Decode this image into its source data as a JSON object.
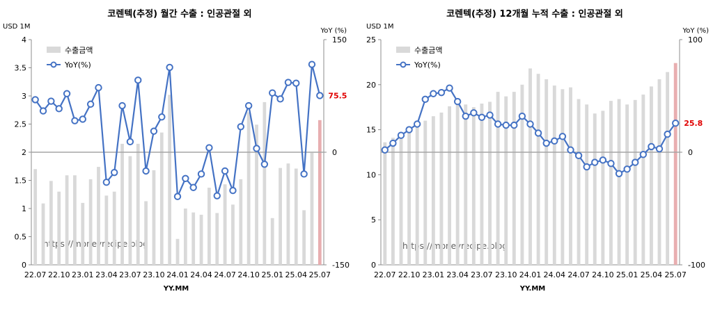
{
  "watermark": "https://moneyrecipe.blog",
  "colors": {
    "bar": "#d9d9d9",
    "bar_last": "#e8aeb0",
    "line": "#4472c4",
    "marker_fill": "#ffffff",
    "highlight_text": "#e00000",
    "zero_line": "#a6a6a6"
  },
  "chart_data": [
    {
      "type": "bar+line",
      "title": "코렌텍(추정) 월간 수출 : 인공관절 외",
      "y_left_unit": "USD 1M",
      "y_right_unit": "YoY (%)",
      "xlabel": "YY.MM",
      "ylim_left": [
        0,
        4
      ],
      "yticks_left": [
        "0",
        "0.5",
        "1",
        "1.5",
        "2",
        "2.5",
        "3",
        "3.5",
        "4"
      ],
      "ylim_right": [
        -150,
        150
      ],
      "yticks_right": [
        "-150",
        "0",
        "150"
      ],
      "x_tick_labels": [
        "22.07",
        "22.10",
        "23.01",
        "23.04",
        "23.07",
        "23.10",
        "24.01",
        "24.04",
        "24.07",
        "24.10",
        "25.01",
        "25.04",
        "25.07"
      ],
      "x": [
        "22.07",
        "22.08",
        "22.09",
        "22.10",
        "22.11",
        "22.12",
        "23.01",
        "23.02",
        "23.03",
        "23.04",
        "23.05",
        "23.06",
        "23.07",
        "23.08",
        "23.09",
        "23.10",
        "23.11",
        "23.12",
        "24.01",
        "24.02",
        "24.03",
        "24.04",
        "24.05",
        "24.06",
        "24.07",
        "24.08",
        "24.09",
        "24.10",
        "24.11",
        "24.12",
        "25.01",
        "25.02",
        "25.03",
        "25.04",
        "25.05",
        "25.06",
        "25.07"
      ],
      "series": [
        {
          "name": "수출금액",
          "kind": "bar",
          "axis": "left",
          "values": [
            1.7,
            1.09,
            1.49,
            1.3,
            1.59,
            1.59,
            1.1,
            1.52,
            1.74,
            1.23,
            1.3,
            2.15,
            1.93,
            2.15,
            1.13,
            1.68,
            2.35,
            3.02,
            0.46,
            1.0,
            0.93,
            0.89,
            1.37,
            0.92,
            1.43,
            1.07,
            1.52,
            2.71,
            2.49,
            2.89,
            0.83,
            1.72,
            1.8,
            1.71,
            0.97,
            1.99,
            2.57
          ]
        },
        {
          "name": "YoY(%)",
          "kind": "line",
          "axis": "right",
          "values": [
            70,
            55,
            68,
            58,
            78,
            42,
            44,
            64,
            86,
            -40,
            -27,
            62,
            14,
            96,
            -25,
            28,
            47,
            113,
            -59,
            -35,
            -47,
            -29,
            6,
            -58,
            -25,
            -51,
            34,
            62,
            5,
            -16,
            79,
            71,
            93,
            92,
            -29,
            117,
            75.5
          ],
          "last_label": "75.5"
        }
      ]
    },
    {
      "type": "bar+line",
      "title": "코렌텍(추정) 12개월 누적 수출 : 인공관절 외",
      "y_left_unit": "USD 1M",
      "y_right_unit": "YoY (%)",
      "xlabel": "YY.MM",
      "ylim_left": [
        0,
        25
      ],
      "yticks_left": [
        "0",
        "5",
        "10",
        "15",
        "20",
        "25"
      ],
      "ylim_right": [
        -100,
        100
      ],
      "yticks_right": [
        "-100",
        "0",
        "100"
      ],
      "x_tick_labels": [
        "22.07",
        "22.10",
        "23.01",
        "23.04",
        "23.07",
        "23.10",
        "24.01",
        "24.04",
        "24.07",
        "24.10",
        "25.01",
        "25.04",
        "25.07"
      ],
      "x": [
        "22.07",
        "22.08",
        "22.09",
        "22.10",
        "22.11",
        "22.12",
        "23.01",
        "23.02",
        "23.03",
        "23.04",
        "23.05",
        "23.06",
        "23.07",
        "23.08",
        "23.09",
        "23.10",
        "23.11",
        "23.12",
        "24.01",
        "24.02",
        "24.03",
        "24.04",
        "24.05",
        "24.06",
        "24.07",
        "24.08",
        "24.09",
        "24.10",
        "24.11",
        "24.12",
        "25.01",
        "25.02",
        "25.03",
        "25.04",
        "25.05",
        "25.06",
        "25.07"
      ],
      "series": [
        {
          "name": "수출금액",
          "kind": "bar",
          "axis": "left",
          "values": [
            13.6,
            14.1,
            14.5,
            15.2,
            15.6,
            16.0,
            16.5,
            16.9,
            17.6,
            18.2,
            17.8,
            17.5,
            17.9,
            18.1,
            19.2,
            18.7,
            19.2,
            20.0,
            21.8,
            21.2,
            20.6,
            19.9,
            19.5,
            19.7,
            18.4,
            17.8,
            16.8,
            17.1,
            18.2,
            18.4,
            17.8,
            18.3,
            18.9,
            19.8,
            20.6,
            21.4,
            22.4
          ],
          "highlight_last": true
        },
        {
          "name": "YoY(%)",
          "kind": "line",
          "axis": "right",
          "values": [
            2,
            8,
            15,
            20,
            25,
            47,
            52,
            53,
            57,
            45,
            32,
            35,
            31,
            33,
            25,
            24,
            24,
            32,
            25,
            17,
            8,
            10,
            14,
            2,
            -3,
            -13,
            -9,
            -7,
            -10,
            -19,
            -15,
            -9,
            -2,
            5,
            3,
            16,
            25.8
          ],
          "last_label": "25.8"
        }
      ]
    }
  ]
}
